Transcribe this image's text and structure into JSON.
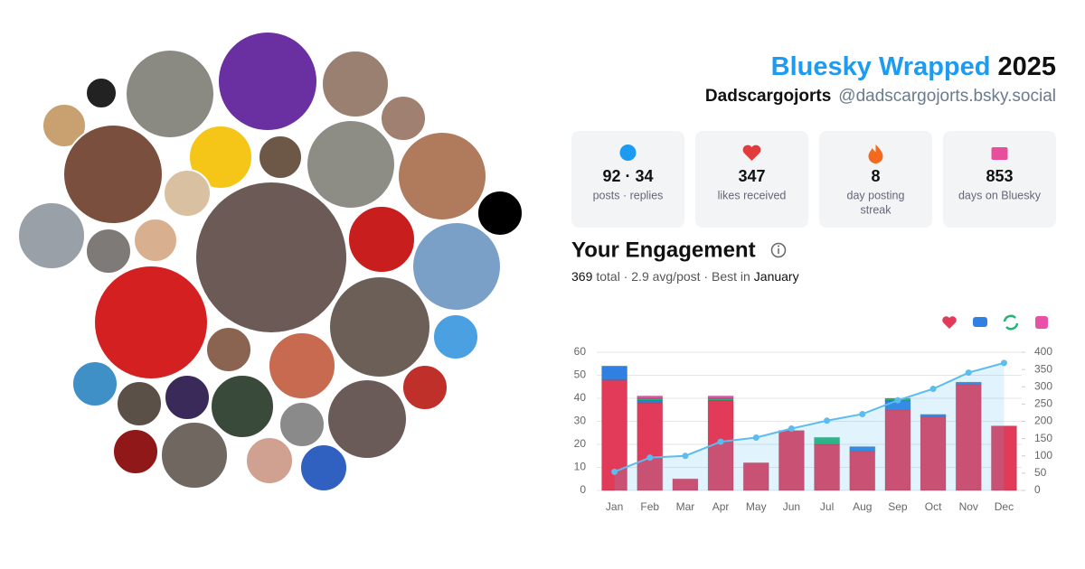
{
  "header": {
    "title": "Bluesky Wrapped",
    "year": "2025",
    "name": "Dadscargojorts",
    "handle": "@dadscargojorts.bsky.social"
  },
  "stats": [
    {
      "value": "92 · 34",
      "label": [
        "posts · replies"
      ]
    },
    {
      "value": "347",
      "label": [
        "likes received"
      ]
    },
    {
      "value": "8",
      "label": [
        "day posting",
        "streak"
      ]
    },
    {
      "value": "853",
      "label": [
        "days on Bluesky"
      ]
    }
  ],
  "engagement": {
    "heading": "Your Engagement",
    "total": "369",
    "summary": "total · 2.9 avg/post · Best in",
    "best": "January"
  },
  "chart_data": {
    "type": "bar",
    "stacked": true,
    "categories": [
      "Jan",
      "Feb",
      "Mar",
      "Apr",
      "May",
      "Jun",
      "Jul",
      "Aug",
      "Sep",
      "Oct",
      "Nov",
      "Dec"
    ],
    "series": [
      {
        "color": "#e23b5a",
        "values": [
          48,
          38,
          5,
          39,
          12,
          26,
          20,
          17,
          35,
          32,
          46,
          28
        ]
      },
      {
        "color": "#2f80e0",
        "values": [
          6,
          1,
          0,
          0,
          0,
          0,
          0,
          2,
          4,
          1,
          1,
          0
        ]
      },
      {
        "color": "#22b573",
        "values": [
          0,
          1,
          0,
          1,
          0,
          0,
          3,
          0,
          1,
          0,
          0,
          0
        ]
      },
      {
        "color": "#e84fa6",
        "values": [
          0,
          1,
          0,
          1,
          0,
          0,
          0,
          0,
          0,
          0,
          0,
          0
        ]
      },
      {
        "type": "line",
        "axis": "y2",
        "color": "#5bbcf0",
        "values": [
          54,
          95,
          100,
          141,
          153,
          179,
          202,
          221,
          261,
          294,
          341,
          369
        ]
      }
    ],
    "ylim": [
      0,
      60
    ],
    "yticks": [
      0,
      10,
      20,
      30,
      40,
      50,
      60
    ],
    "y2lim": [
      0,
      400
    ],
    "y2ticks": [
      0,
      50,
      100,
      150,
      200,
      250,
      300,
      350,
      400
    ],
    "grid": true
  }
}
